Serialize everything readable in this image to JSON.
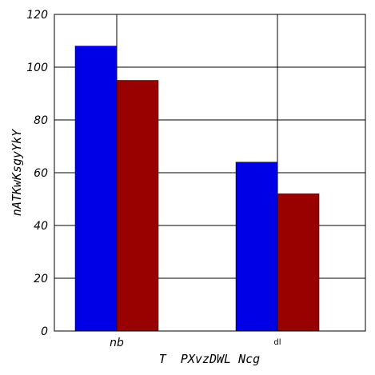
{
  "chart_data": {
    "type": "bar",
    "categories": [
      "nb",
      "dl"
    ],
    "series": [
      {
        "values": [
          108,
          64
        ],
        "color": "#0000e6"
      },
      {
        "values": [
          95,
          52
        ],
        "color": "#990000"
      }
    ],
    "title": "",
    "xlabel": "T  PXvzDWL Ncg",
    "ylabel": "nATKwKsgyYkY",
    "ylim": [
      0,
      120
    ],
    "yticks": [
      "0",
      "20",
      "40",
      "60",
      "80",
      "100",
      "120"
    ],
    "grid": true
  }
}
